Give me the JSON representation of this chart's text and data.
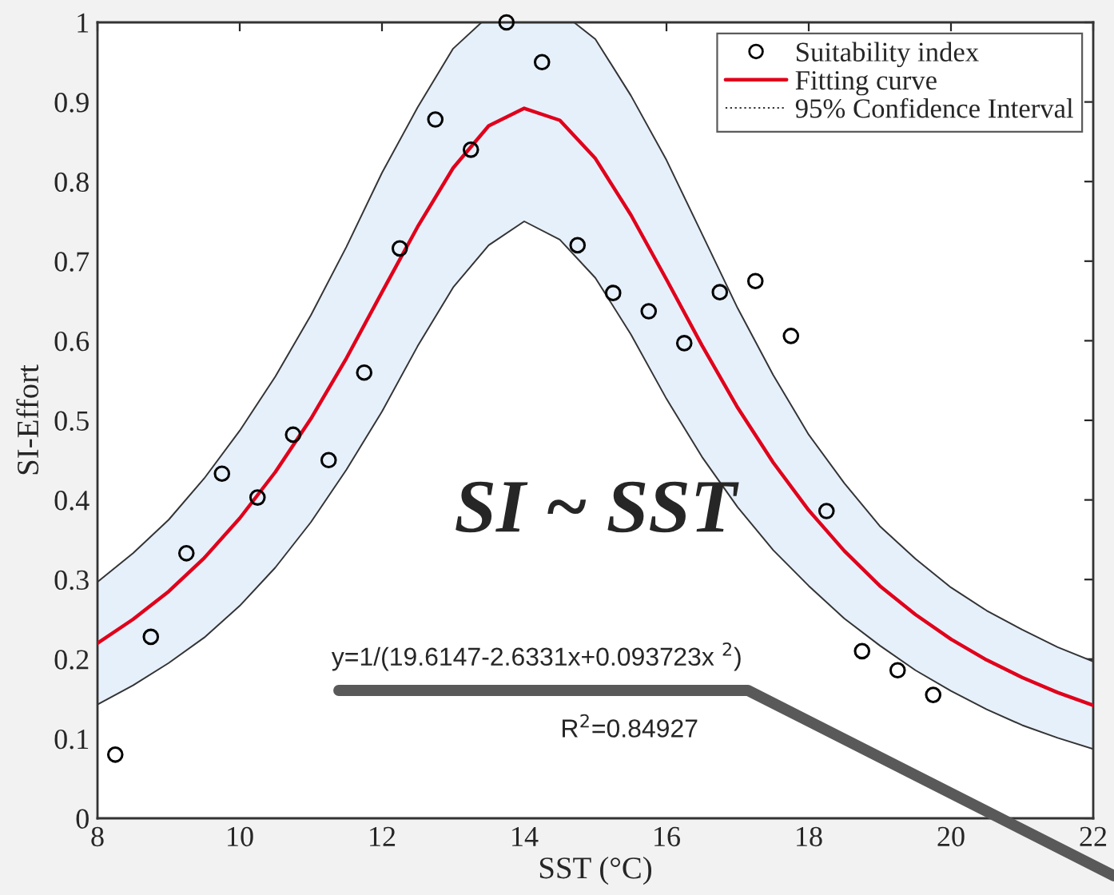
{
  "chart_data": {
    "type": "scatter",
    "xlabel": "SST (°C)",
    "ylabel": "SI-Effort",
    "xlim": [
      8,
      22
    ],
    "ylim": [
      0,
      1
    ],
    "xticks": [
      8,
      10,
      12,
      14,
      16,
      18,
      20,
      22
    ],
    "yticks": [
      0,
      0.1,
      0.2,
      0.3,
      0.4,
      0.5,
      0.6,
      0.7,
      0.8,
      0.9,
      1
    ],
    "grid": false,
    "legend": "top right",
    "annotations": [
      "SI ~ SST",
      "y=1/(19.6147-2.6331x+0.093723x $^{2}$)",
      "R$^{2}$=0.84927"
    ],
    "series": [
      {
        "name": "Suitability index",
        "color": "#000000",
        "marker": "circle",
        "x": [
          8.25,
          8.75,
          9.25,
          9.75,
          10.25,
          10.75,
          11.25,
          11.75,
          12.25,
          12.75,
          13.25,
          13.75,
          14.25,
          14.75,
          15.25,
          15.75,
          16.25,
          16.75,
          17.25,
          17.75,
          18.25,
          18.75,
          19.25,
          19.75
        ],
        "values": [
          0.08,
          0.228,
          0.333,
          0.433,
          0.403,
          0.482,
          0.45,
          0.56,
          0.716,
          0.878,
          0.84,
          1.0,
          0.95,
          0.72,
          0.66,
          0.637,
          0.597,
          0.661,
          0.675,
          0.606,
          0.386,
          0.21,
          0.186,
          0.155
        ]
      },
      {
        "type": "line",
        "name": "Fitting curve",
        "color": "#e0001b",
        "x": [
          8,
          8.5,
          9,
          9.5,
          10,
          10.5,
          11,
          11.5,
          12,
          12.5,
          13,
          13.5,
          14,
          14.5,
          15,
          15.5,
          16,
          16.5,
          17,
          17.5,
          18,
          18.5,
          19,
          19.5,
          20,
          20.5,
          21,
          21.5,
          22
        ],
        "values": [
          0.22,
          0.25,
          0.285,
          0.327,
          0.377,
          0.435,
          0.502,
          0.578,
          0.661,
          0.743,
          0.817,
          0.87,
          0.892,
          0.877,
          0.829,
          0.758,
          0.677,
          0.594,
          0.516,
          0.447,
          0.387,
          0.336,
          0.292,
          0.256,
          0.225,
          0.199,
          0.177,
          0.158,
          0.142
        ]
      },
      {
        "type": "area",
        "name": "95% Confidence Interval",
        "color": "#e6f0fa",
        "x": [
          8,
          8.5,
          9,
          9.5,
          10,
          10.5,
          11,
          11.5,
          12,
          12.5,
          13,
          13.4,
          14.7,
          15,
          15.5,
          16,
          16.5,
          17,
          17.5,
          18,
          18.5,
          19,
          19.5,
          20,
          20.5,
          21,
          21.5,
          22
        ],
        "values": [
          0.297,
          0.333,
          0.375,
          0.427,
          0.487,
          0.555,
          0.632,
          0.718,
          0.811,
          0.893,
          0.967,
          1.0,
          1.0,
          0.979,
          0.908,
          0.827,
          0.734,
          0.641,
          0.557,
          0.482,
          0.421,
          0.367,
          0.326,
          0.29,
          0.261,
          0.237,
          0.215,
          0.197
        ]
      },
      {
        "type": "area",
        "color": "#ffffff",
        "x": [
          8,
          8.5,
          9,
          9.5,
          10,
          10.5,
          11,
          11.5,
          12,
          12.5,
          13,
          13.5,
          14,
          14.5,
          15,
          15.5,
          16,
          16.5,
          17,
          17.5,
          18,
          18.5,
          19,
          19.5,
          20,
          20.5,
          21,
          21.5,
          22
        ],
        "values": [
          0.143,
          0.167,
          0.195,
          0.227,
          0.267,
          0.315,
          0.372,
          0.438,
          0.511,
          0.593,
          0.667,
          0.72,
          0.75,
          0.727,
          0.679,
          0.608,
          0.527,
          0.454,
          0.391,
          0.337,
          0.292,
          0.251,
          0.217,
          0.186,
          0.16,
          0.137,
          0.117,
          0.101,
          0.087
        ]
      }
    ]
  }
}
